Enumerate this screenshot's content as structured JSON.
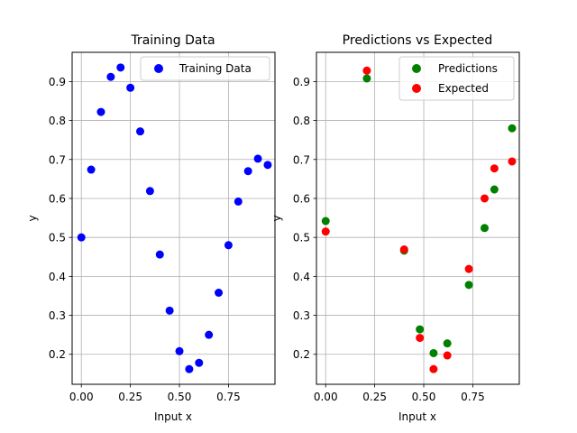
{
  "chart_data": [
    {
      "type": "scatter",
      "title": "Training Data",
      "xlabel": "Input x",
      "ylabel": "y",
      "xlim": [
        -0.047,
        0.987
      ],
      "ylim": [
        0.123,
        0.975
      ],
      "xticks": [
        "0.00",
        "0.25",
        "0.50",
        "0.75"
      ],
      "xtick_values": [
        0,
        0.25,
        0.5,
        0.75
      ],
      "yticks": [
        "0.2",
        "0.3",
        "0.4",
        "0.5",
        "0.6",
        "0.7",
        "0.8",
        "0.9"
      ],
      "ytick_values": [
        0.2,
        0.3,
        0.4,
        0.5,
        0.6,
        0.7,
        0.8,
        0.9
      ],
      "grid": true,
      "legend_position": "upper right",
      "series": [
        {
          "name": "Training Data",
          "color": "#0000ff",
          "x": [
            0.0,
            0.05,
            0.1,
            0.15,
            0.2,
            0.25,
            0.3,
            0.35,
            0.4,
            0.45,
            0.5,
            0.55,
            0.6,
            0.65,
            0.7,
            0.75,
            0.8,
            0.85,
            0.9,
            0.95
          ],
          "y": [
            0.5,
            0.674,
            0.822,
            0.912,
            0.936,
            0.884,
            0.772,
            0.619,
            0.456,
            0.312,
            0.208,
            0.162,
            0.178,
            0.25,
            0.358,
            0.48,
            0.592,
            0.67,
            0.702,
            0.686
          ]
        }
      ]
    },
    {
      "type": "scatter",
      "title": "Predictions vs Expected",
      "xlabel": "Input x",
      "ylabel": "y",
      "xlim": [
        -0.047,
        0.987
      ],
      "ylim": [
        0.123,
        0.975
      ],
      "xticks": [
        "0.00",
        "0.25",
        "0.50",
        "0.75"
      ],
      "xtick_values": [
        0,
        0.25,
        0.5,
        0.75
      ],
      "yticks": [
        "0.2",
        "0.3",
        "0.4",
        "0.5",
        "0.6",
        "0.7",
        "0.8",
        "0.9"
      ],
      "ytick_values": [
        0.2,
        0.3,
        0.4,
        0.5,
        0.6,
        0.7,
        0.8,
        0.9
      ],
      "grid": true,
      "legend_position": "upper right",
      "series": [
        {
          "name": "Predictions",
          "color": "#008000",
          "x": [
            0.0,
            0.21,
            0.4,
            0.48,
            0.55,
            0.62,
            0.73,
            0.81,
            0.86,
            0.95
          ],
          "y": [
            0.542,
            0.908,
            0.466,
            0.264,
            0.203,
            0.228,
            0.378,
            0.524,
            0.623,
            0.78
          ]
        },
        {
          "name": "Expected",
          "color": "#ff0000",
          "x": [
            0.0,
            0.21,
            0.4,
            0.48,
            0.55,
            0.62,
            0.73,
            0.81,
            0.86,
            0.95
          ],
          "y": [
            0.515,
            0.928,
            0.469,
            0.242,
            0.162,
            0.197,
            0.419,
            0.6,
            0.677,
            0.695
          ]
        }
      ]
    }
  ]
}
